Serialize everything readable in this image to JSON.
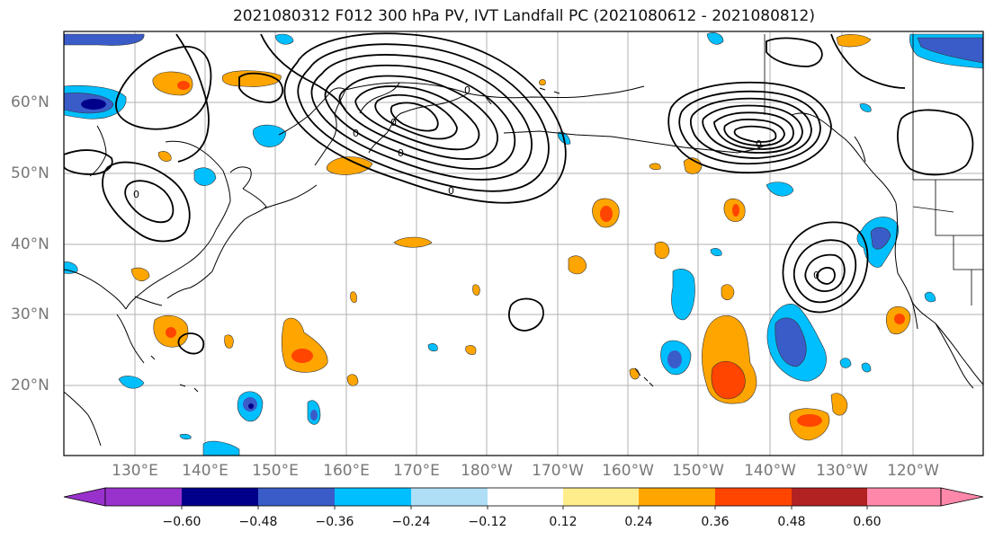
{
  "title": "2021080312 F012 300 hPa PV, IVT Landfall PC (2021080612 - 2021080812)",
  "lat_labels": [
    "60°N",
    "50°N",
    "40°N",
    "30°N",
    "20°N"
  ],
  "lon_labels": [
    "130°E",
    "140°E",
    "150°E",
    "160°E",
    "170°E",
    "180°W",
    "170°W",
    "160°W",
    "150°W",
    "140°W",
    "130°W",
    "120°W"
  ],
  "colorbar": {
    "colors": [
      "#9932cc",
      "#00008b",
      "#3a5cc9",
      "#00bfff",
      "#aedff7",
      "#ffffff",
      "#ffec8b",
      "#ffa500",
      "#ff4500",
      "#b22222",
      "#ff88aa"
    ],
    "tick_labels": [
      "−0.60",
      "−0.48",
      "−0.36",
      "−0.24",
      "−0.12",
      "0.12",
      "0.24",
      "0.36",
      "0.48",
      "0.60"
    ]
  },
  "contour_labels": [
    "0",
    "0",
    "0",
    "0",
    "0",
    "0",
    "0",
    "0"
  ]
}
